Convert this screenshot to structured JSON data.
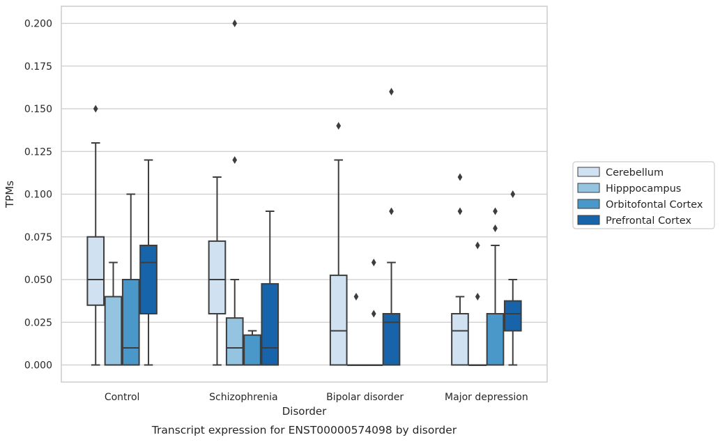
{
  "chart_data": {
    "type": "box",
    "caption": "Transcript expression for ENST00000574098 by disorder",
    "xlabel": "Disorder",
    "ylabel": "TPMs",
    "ylim": [
      -0.01,
      0.21
    ],
    "yticks": [
      "0.000",
      "0.025",
      "0.050",
      "0.075",
      "0.100",
      "0.125",
      "0.150",
      "0.175",
      "0.200"
    ],
    "grid": "horizontal",
    "legend_position": "right",
    "categories": [
      "Control",
      "Schizophrenia",
      "Bipolar disorder",
      "Major depression"
    ],
    "series": [
      {
        "name": "Cerebellum",
        "color": "#d0e1f2",
        "boxes": [
          {
            "whisker_low": 0.0,
            "q1": 0.035,
            "median": 0.05,
            "q3": 0.075,
            "whisker_high": 0.13,
            "outliers": [
              0.15
            ]
          },
          {
            "whisker_low": 0.0,
            "q1": 0.03,
            "median": 0.05,
            "q3": 0.0725,
            "whisker_high": 0.11,
            "outliers": []
          },
          {
            "whisker_low": 0.0,
            "q1": 0.0,
            "median": 0.02,
            "q3": 0.0525,
            "whisker_high": 0.12,
            "outliers": [
              0.14
            ]
          },
          {
            "whisker_low": 0.0,
            "q1": 0.0,
            "median": 0.02,
            "q3": 0.03,
            "whisker_high": 0.04,
            "outliers": [
              0.09,
              0.11
            ]
          }
        ]
      },
      {
        "name": "Hipppocampus",
        "color": "#94c4df",
        "boxes": [
          {
            "whisker_low": 0.0,
            "q1": 0.0,
            "median": 0.0,
            "q3": 0.04,
            "whisker_high": 0.06,
            "outliers": []
          },
          {
            "whisker_low": 0.0,
            "q1": 0.0,
            "median": 0.01,
            "q3": 0.0275,
            "whisker_high": 0.05,
            "outliers": [
              0.12,
              0.2
            ]
          },
          {
            "whisker_low": 0.0,
            "q1": 0.0,
            "median": 0.0,
            "q3": 0.0,
            "whisker_high": 0.0,
            "outliers": [
              0.04
            ]
          },
          {
            "whisker_low": 0.0,
            "q1": 0.0,
            "median": 0.0,
            "q3": 0.0,
            "whisker_high": 0.0,
            "outliers": [
              0.04,
              0.07
            ]
          }
        ]
      },
      {
        "name": "Orbitofontal Cortex",
        "color": "#4a98c9",
        "boxes": [
          {
            "whisker_low": 0.0,
            "q1": 0.0,
            "median": 0.01,
            "q3": 0.05,
            "whisker_high": 0.1,
            "outliers": []
          },
          {
            "whisker_low": 0.0,
            "q1": 0.0,
            "median": 0.0,
            "q3": 0.0175,
            "whisker_high": 0.02,
            "outliers": []
          },
          {
            "whisker_low": 0.0,
            "q1": 0.0,
            "median": 0.0,
            "q3": 0.0,
            "whisker_high": 0.0,
            "outliers": [
              0.03,
              0.06
            ]
          },
          {
            "whisker_low": 0.0,
            "q1": 0.0,
            "median": 0.0,
            "q3": 0.03,
            "whisker_high": 0.07,
            "outliers": [
              0.08,
              0.09
            ]
          }
        ]
      },
      {
        "name": "Prefrontal Cortex",
        "color": "#1764ab",
        "boxes": [
          {
            "whisker_low": 0.0,
            "q1": 0.03,
            "median": 0.06,
            "q3": 0.07,
            "whisker_high": 0.12,
            "outliers": []
          },
          {
            "whisker_low": 0.0,
            "q1": 0.0,
            "median": 0.01,
            "q3": 0.0475,
            "whisker_high": 0.09,
            "outliers": []
          },
          {
            "whisker_low": 0.0,
            "q1": 0.0,
            "median": 0.025,
            "q3": 0.03,
            "whisker_high": 0.06,
            "outliers": [
              0.09,
              0.16
            ]
          },
          {
            "whisker_low": 0.0,
            "q1": 0.02,
            "median": 0.03,
            "q3": 0.0375,
            "whisker_high": 0.05,
            "outliers": [
              0.1
            ]
          }
        ]
      }
    ]
  }
}
